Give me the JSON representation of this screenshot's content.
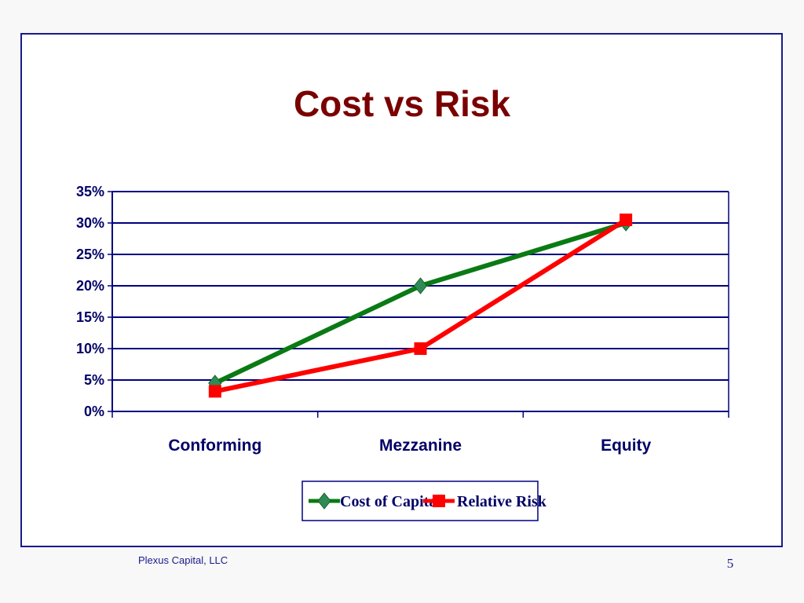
{
  "slide": {
    "footer_left": "Plexus Capital, LLC",
    "page_number": "5"
  },
  "chart_data": {
    "type": "line",
    "title": "Cost vs Risk",
    "xlabel": "",
    "ylabel": "",
    "categories": [
      "Conforming",
      "Mezzanine",
      "Equity"
    ],
    "series": [
      {
        "name": "Cost of Capital",
        "values": [
          0.045,
          0.2,
          0.3
        ],
        "color": "#0a7a14",
        "marker": "diamond",
        "marker_color": "#2e8b57"
      },
      {
        "name": "Relative Risk",
        "values": [
          0.032,
          0.1,
          0.305
        ],
        "color": "#ff0000",
        "marker": "square",
        "marker_color": "#ff0000"
      }
    ],
    "ylim": [
      0,
      0.35
    ],
    "yticks": [
      "0%",
      "5%",
      "10%",
      "15%",
      "20%",
      "25%",
      "30%",
      "35%"
    ],
    "grid": true,
    "legend": "bottom"
  }
}
